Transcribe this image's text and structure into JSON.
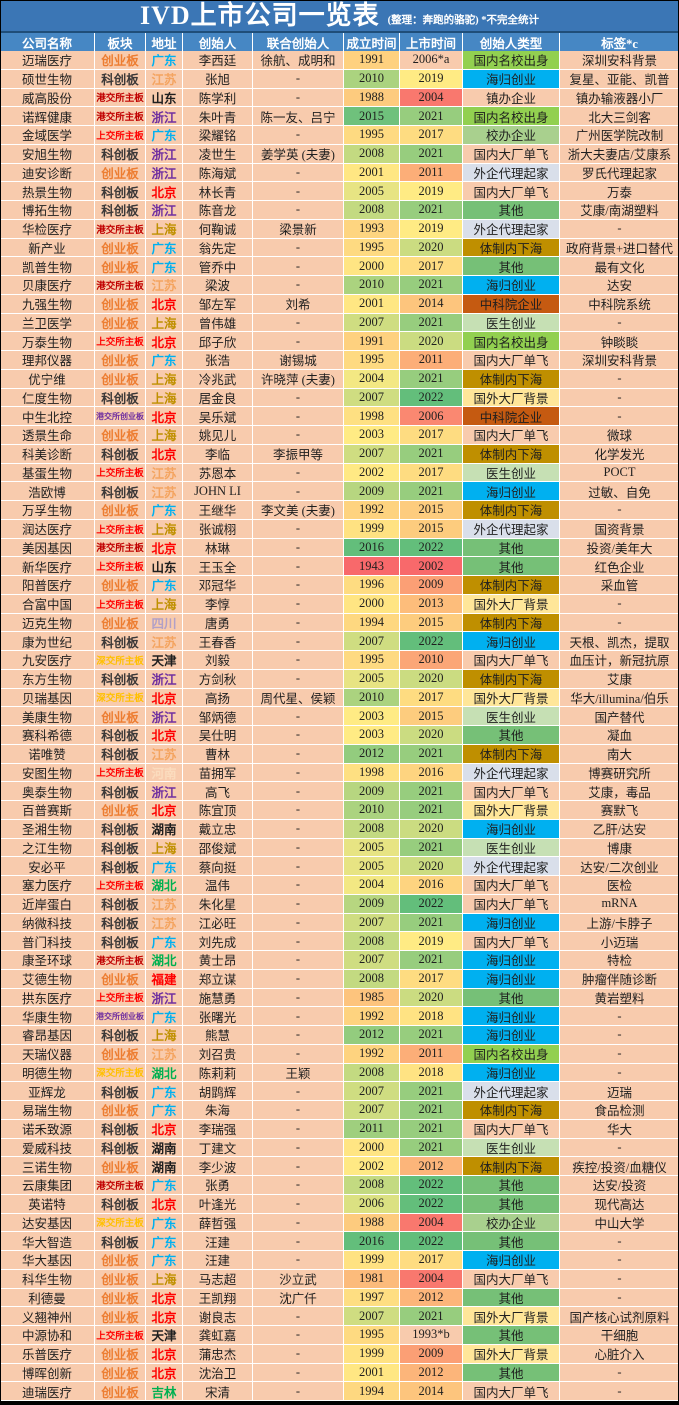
{
  "title": {
    "main": "IVD上市公司一览表",
    "sub": "(整理：奔跑的骆驼) *不完全统计"
  },
  "palette": {
    "cell_bg": "#F8CBAD",
    "title_bg": "#3B76B5",
    "header_bg": "#4687C4",
    "gridline": "#FFFFFF",
    "scale_red": "#F8696B",
    "scale_yellow": "#FFEB84",
    "scale_green": "#63BE7B"
  },
  "board_colors": {
    "创业板": "#ED7D31",
    "科创板": "#3B3838",
    "港交所主板": "#C00000",
    "上交所主板": "#FF0000",
    "深交所主板": "#FFC000",
    "港交所创业板": "#7030A0"
  },
  "region_colors": {
    "广东": "#00B0F0",
    "江苏": "#F4A460",
    "山东": "#1F1F1F",
    "浙江": "#7030A0",
    "北京": "#FF0000",
    "上海": "#BF9000",
    "四川": "#B1A0C7",
    "天津": "#1F1F1F",
    "河南": "#FBDCBE",
    "湖北": "#00B050",
    "福建": "#FF0000",
    "湖南": "#1F1F1F",
    "吉林": "#00B050"
  },
  "type_colors": {
    "国内名校出身": "#92D050",
    "海归创业": "#00B0F0",
    "校办企业": "#A9D08E",
    "医生创业": "#C6E0B4",
    "外企代理起家": "#D9DFEA",
    "其他": "#76C077",
    "体制内下海": "#BF8F00",
    "中科院企业": "#C55A11",
    "国外大厂背景": "#FFE699"
  },
  "year_scales": {
    "founded": {
      "min": 1943,
      "mid": 2003,
      "max": 2016
    },
    "listed": {
      "min": 2002,
      "mid": 2019,
      "max": 2022
    }
  },
  "chart_data": {
    "type": "table",
    "title": "IVD上市公司一览表",
    "columns": [
      "公司名称",
      "板块",
      "地址",
      "创始人",
      "联合创始人",
      "成立时间",
      "上市时间",
      "创始人类型",
      "标签*c"
    ],
    "rows": [
      [
        "迈瑞医疗",
        "创业板",
        "广东",
        "李西廷",
        "徐航、成明和",
        "1991",
        "2006*a",
        "国内名校出身",
        "深圳安科背景"
      ],
      [
        "硕世生物",
        "科创板",
        "江苏",
        "张旭",
        "-",
        "2010",
        "2019",
        "海归创业",
        "复星、亚能、凯普"
      ],
      [
        "威高股份",
        "港交所主板",
        "山东",
        "陈学利",
        "-",
        "1988",
        "2004",
        "镇办企业",
        "镇办输液器小厂"
      ],
      [
        "诺辉健康",
        "港交所主板",
        "浙江",
        "朱叶青",
        "陈一友、吕宁",
        "2015",
        "2021",
        "国内名校出身",
        "北大三剑客"
      ],
      [
        "金域医学",
        "上交所主板",
        "广东",
        "梁耀铭",
        "-",
        "1995",
        "2017",
        "校办企业",
        "广州医学院改制"
      ],
      [
        "安旭生物",
        "科创板",
        "浙江",
        "凌世生",
        "姜学英 (夫妻)",
        "2008",
        "2021",
        "国内大厂单飞",
        "浙大夫妻店/艾康系"
      ],
      [
        "迪安诊断",
        "创业板",
        "浙江",
        "陈海斌",
        "-",
        "2001",
        "2011",
        "外企代理起家",
        "罗氏代理起家"
      ],
      [
        "热景生物",
        "科创板",
        "北京",
        "林长青",
        "-",
        "2005",
        "2019",
        "国内大厂单飞",
        "万泰"
      ],
      [
        "博拓生物",
        "科创板",
        "浙江",
        "陈音龙",
        "-",
        "2008",
        "2021",
        "其他",
        "艾康/南湖塑料"
      ],
      [
        "华检医疗",
        "港交所主板",
        "上海",
        "何鞠诚",
        "梁景新",
        "1993",
        "2019",
        "外企代理起家",
        "-"
      ],
      [
        "新产业",
        "创业板",
        "广东",
        "翁先定",
        "-",
        "1995",
        "2020",
        "体制内下海",
        "政府背景+进口替代"
      ],
      [
        "凯普生物",
        "创业板",
        "广东",
        "管乔中",
        "-",
        "2000",
        "2017",
        "其他",
        "最有文化"
      ],
      [
        "贝康医疗",
        "港交所主板",
        "江苏",
        "梁波",
        "-",
        "2010",
        "2021",
        "海归创业",
        "达安"
      ],
      [
        "九强生物",
        "创业板",
        "北京",
        "邹左军",
        "刘希",
        "2001",
        "2014",
        "中科院企业",
        "中科院系统"
      ],
      [
        "兰卫医学",
        "创业板",
        "上海",
        "曾伟雄",
        "-",
        "2007",
        "2021",
        "医生创业",
        "-"
      ],
      [
        "万泰生物",
        "上交所主板",
        "北京",
        "邱子欣",
        "-",
        "1991",
        "2020",
        "国内名校出身",
        "钟睒睒"
      ],
      [
        "理邦仪器",
        "创业板",
        "广东",
        "张浩",
        "谢锡城",
        "1995",
        "2011",
        "国内大厂单飞",
        "深圳安科背景"
      ],
      [
        "优宁维",
        "创业板",
        "上海",
        "冷兆武",
        "许晓萍 (夫妻)",
        "2004",
        "2021",
        "体制内下海",
        "-"
      ],
      [
        "仁度生物",
        "科创板",
        "上海",
        "居金良",
        "-",
        "2007",
        "2022",
        "国外大厂背景",
        "-"
      ],
      [
        "中生北控",
        "港交所创业板",
        "北京",
        "吴乐斌",
        "-",
        "1998",
        "2006",
        "中科院企业",
        "-"
      ],
      [
        "透景生命",
        "创业板",
        "上海",
        "姚见儿",
        "-",
        "2003",
        "2017",
        "国内大厂单飞",
        "微球"
      ],
      [
        "科美诊断",
        "科创板",
        "北京",
        "李临",
        "李振甲等",
        "2007",
        "2021",
        "体制内下海",
        "化学发光"
      ],
      [
        "基蛋生物",
        "上交所主板",
        "江苏",
        "苏恩本",
        "-",
        "2002",
        "2017",
        "医生创业",
        "POCT"
      ],
      [
        "浩欧博",
        "科创板",
        "江苏",
        "JOHN LI",
        "-",
        "2009",
        "2021",
        "海归创业",
        "过敏、自免"
      ],
      [
        "万孚生物",
        "创业板",
        "广东",
        "王继华",
        "李文美 (夫妻)",
        "1992",
        "2015",
        "体制内下海",
        "-"
      ],
      [
        "润达医疗",
        "上交所主板",
        "上海",
        "张诚栩",
        "-",
        "1999",
        "2015",
        "外企代理起家",
        "国资背景"
      ],
      [
        "美因基因",
        "港交所主板",
        "北京",
        "林琳",
        "-",
        "2016",
        "2022",
        "其他",
        "投资/美年大"
      ],
      [
        "新华医疗",
        "上交所主板",
        "山东",
        "王玉全",
        "-",
        "1943",
        "2002",
        "其他",
        "红色企业"
      ],
      [
        "阳普医疗",
        "创业板",
        "广东",
        "邓冠华",
        "-",
        "1996",
        "2009",
        "体制内下海",
        "采血管"
      ],
      [
        "合富中国",
        "上交所主板",
        "上海",
        "李惇",
        "-",
        "2000",
        "2013",
        "国外大厂背景",
        "-"
      ],
      [
        "迈克生物",
        "创业板",
        "四川",
        "唐勇",
        "-",
        "1994",
        "2015",
        "体制内下海",
        "-"
      ],
      [
        "康为世纪",
        "科创板",
        "江苏",
        "王春香",
        "-",
        "2007",
        "2022",
        "海归创业",
        "天根、凯杰，提取"
      ],
      [
        "九安医疗",
        "深交所主板",
        "天津",
        "刘毅",
        "-",
        "1995",
        "2010",
        "国内大厂单飞",
        "血压计，新冠抗原"
      ],
      [
        "东方生物",
        "科创板",
        "浙江",
        "方剑秋",
        "-",
        "2005",
        "2020",
        "体制内下海",
        "艾康"
      ],
      [
        "贝瑞基因",
        "深交所主板",
        "北京",
        "高扬",
        "周代星、侯颖",
        "2010",
        "2017",
        "国外大厂背景",
        "华大/illumina/伯乐"
      ],
      [
        "美康生物",
        "创业板",
        "浙江",
        "邹炳德",
        "-",
        "2003",
        "2015",
        "医生创业",
        "国产替代"
      ],
      [
        "赛科希德",
        "科创板",
        "北京",
        "吴仕明",
        "-",
        "2003",
        "2020",
        "其他",
        "凝血"
      ],
      [
        "诺唯赞",
        "科创板",
        "江苏",
        "曹林",
        "-",
        "2012",
        "2021",
        "体制内下海",
        "南大"
      ],
      [
        "安图生物",
        "上交所主板",
        "河南",
        "苗拥军",
        "-",
        "1998",
        "2016",
        "外企代理起家",
        "博赛研究所"
      ],
      [
        "奥泰生物",
        "科创板",
        "浙江",
        "高飞",
        "-",
        "2009",
        "2021",
        "国内大厂单飞",
        "艾康，毒品"
      ],
      [
        "百普赛斯",
        "创业板",
        "北京",
        "陈宜顶",
        "-",
        "2010",
        "2021",
        "国外大厂背景",
        "赛默飞"
      ],
      [
        "圣湘生物",
        "科创板",
        "湖南",
        "戴立忠",
        "-",
        "2008",
        "2020",
        "海归创业",
        "乙肝/达安"
      ],
      [
        "之江生物",
        "科创板",
        "上海",
        "邵俊斌",
        "-",
        "2005",
        "2021",
        "医生创业",
        "博康"
      ],
      [
        "安必平",
        "科创板",
        "广东",
        "蔡向挺",
        "-",
        "2005",
        "2020",
        "外企代理起家",
        "达安/二次创业"
      ],
      [
        "塞力医疗",
        "上交所主板",
        "湖北",
        "温伟",
        "-",
        "2004",
        "2016",
        "国内大厂单飞",
        "医检"
      ],
      [
        "近岸蛋白",
        "科创板",
        "江苏",
        "朱化星",
        "-",
        "2009",
        "2022",
        "国内大厂单飞",
        "mRNA"
      ],
      [
        "纳微科技",
        "科创板",
        "江苏",
        "江必旺",
        "-",
        "2007",
        "2021",
        "海归创业",
        "上游/卡脖子"
      ],
      [
        "普门科技",
        "科创板",
        "广东",
        "刘先成",
        "-",
        "2008",
        "2019",
        "国内大厂单飞",
        "小迈瑞"
      ],
      [
        "康圣环球",
        "港交所主板",
        "湖北",
        "黄士昂",
        "-",
        "2007",
        "2021",
        "海归创业",
        "特检"
      ],
      [
        "艾德生物",
        "创业板",
        "福建",
        "郑立谋",
        "-",
        "2008",
        "2017",
        "海归创业",
        "肿瘤伴随诊断"
      ],
      [
        "拱东医疗",
        "上交所主板",
        "浙江",
        "施慧勇",
        "-",
        "1985",
        "2020",
        "其他",
        "黄岩塑料"
      ],
      [
        "华康生物",
        "港交所创业板",
        "广东",
        "张曙光",
        "-",
        "1992",
        "2018",
        "海归创业",
        "-"
      ],
      [
        "睿昂基因",
        "科创板",
        "上海",
        "熊慧",
        "-",
        "2012",
        "2021",
        "海归创业",
        "-"
      ],
      [
        "天瑞仪器",
        "创业板",
        "江苏",
        "刘召贵",
        "-",
        "1992",
        "2011",
        "国内名校出身",
        "-"
      ],
      [
        "明德生物",
        "深交所主板",
        "湖北",
        "陈莉莉",
        "王颖",
        "2008",
        "2018",
        "海归创业",
        "-"
      ],
      [
        "亚辉龙",
        "科创板",
        "广东",
        "胡鹍辉",
        "-",
        "2007",
        "2021",
        "外企代理起家",
        "迈瑞"
      ],
      [
        "易瑞生物",
        "创业板",
        "广东",
        "朱海",
        "-",
        "2007",
        "2021",
        "体制内下海",
        "食品检测"
      ],
      [
        "诺禾致源",
        "科创板",
        "北京",
        "李瑞强",
        "-",
        "2011",
        "2021",
        "国内大厂单飞",
        "华大"
      ],
      [
        "爱威科技",
        "科创板",
        "湖南",
        "丁建文",
        "-",
        "2000",
        "2021",
        "医生创业",
        "-"
      ],
      [
        "三诺生物",
        "创业板",
        "湖南",
        "李少波",
        "-",
        "2002",
        "2012",
        "体制内下海",
        "疾控/投资/血糖仪"
      ],
      [
        "云康集团",
        "港交所主板",
        "广东",
        "张勇",
        "-",
        "2008",
        "2022",
        "其他",
        "达安/投资"
      ],
      [
        "英诺特",
        "科创板",
        "北京",
        "叶逢光",
        "-",
        "2006",
        "2022",
        "其他",
        "现代高达"
      ],
      [
        "达安基因",
        "深交所主板",
        "广东",
        "薛哲强",
        "-",
        "1988",
        "2004",
        "校办企业",
        "中山大学"
      ],
      [
        "华大智造",
        "科创板",
        "广东",
        "汪建",
        "-",
        "2016",
        "2022",
        "其他",
        "-"
      ],
      [
        "华大基因",
        "创业板",
        "广东",
        "汪建",
        "-",
        "1999",
        "2017",
        "海归创业",
        "-"
      ],
      [
        "科华生物",
        "创业板",
        "上海",
        "马志超",
        "沙立武",
        "1981",
        "2004",
        "国内大厂单飞",
        "-"
      ],
      [
        "利德曼",
        "创业板",
        "北京",
        "王凯翔",
        "沈广仟",
        "1997",
        "2012",
        "其他",
        "-"
      ],
      [
        "义翘神州",
        "创业板",
        "北京",
        "谢良志",
        "-",
        "2007",
        "2021",
        "国外大厂背景",
        "国产核心试剂原料"
      ],
      [
        "中源协和",
        "上交所主板",
        "天津",
        "龚虹嘉",
        "-",
        "1995",
        "1993*b",
        "其他",
        "干细胞"
      ],
      [
        "乐普医疗",
        "创业板",
        "北京",
        "蒲忠杰",
        "-",
        "1999",
        "2009",
        "国外大厂背景",
        "心脏介入"
      ],
      [
        "博晖创新",
        "创业板",
        "北京",
        "沈治卫",
        "-",
        "2001",
        "2012",
        "其他",
        "-"
      ],
      [
        "迪瑞医疗",
        "创业板",
        "吉林",
        "宋清",
        "-",
        "1994",
        "2014",
        "国内大厂单飞",
        "-"
      ]
    ]
  }
}
